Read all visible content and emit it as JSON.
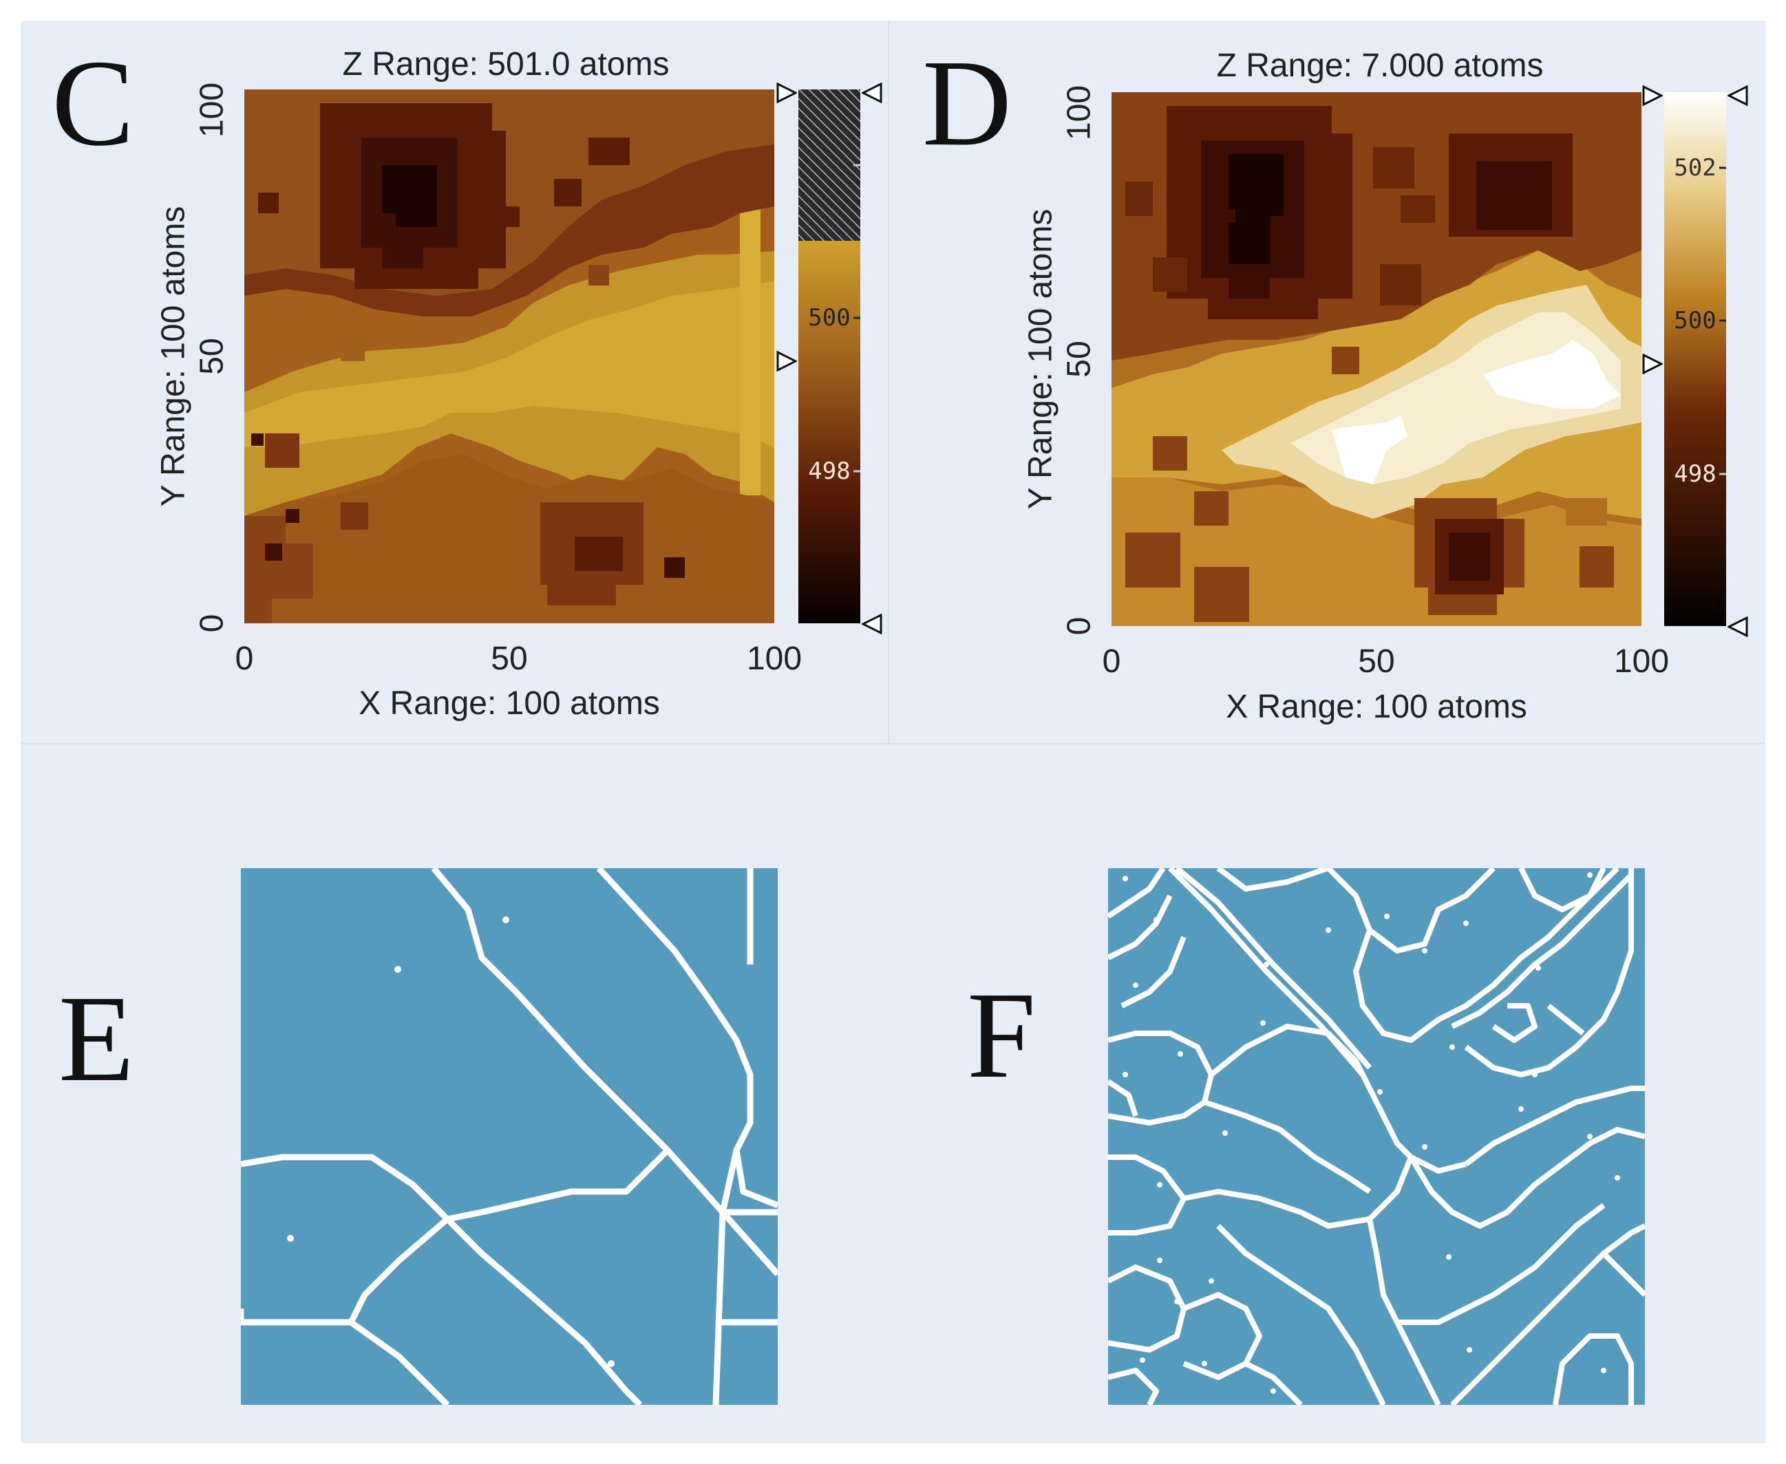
{
  "panels": {
    "C": {
      "letter": "C",
      "z_title": "Z Range:  501.0 atoms",
      "x_label": "X Range: 100 atoms",
      "y_label": "Y Range: 100 atoms",
      "x_ticks": [
        "0",
        "50",
        "100"
      ],
      "y_ticks": [
        "0",
        "50",
        "100"
      ],
      "colorbar_ticks": [
        "",
        "500",
        "498"
      ]
    },
    "D": {
      "letter": "D",
      "z_title": "Z Range:  7.000 atoms",
      "x_label": "X Range: 100 atoms",
      "y_label": "Y Range: 100 atoms",
      "x_ticks": [
        "0",
        "50",
        "100"
      ],
      "y_ticks": [
        "0",
        "50",
        "100"
      ],
      "colorbar_ticks": [
        "502",
        "500",
        "498"
      ]
    },
    "E": {
      "letter": "E"
    },
    "F": {
      "letter": "F"
    }
  },
  "chart_data": [
    {
      "panel": "C",
      "type": "heatmap",
      "title": "Z Range:  501.0 atoms",
      "xlabel": "X Range: 100 atoms",
      "ylabel": "Y Range: 100 atoms",
      "xlim": [
        0,
        100
      ],
      "ylim": [
        0,
        100
      ],
      "colorbar_ticks": [
        500,
        498
      ],
      "colors": {
        "darkest": "#2a0600",
        "dark": "#7a3410",
        "mid": "#a05f1c",
        "light": "#b98222",
        "lightest": "#c99a2a"
      },
      "z_regions": [
        {
          "level": 497,
          "x": [
            25,
            35
          ],
          "y": [
            80,
            87
          ]
        },
        {
          "level": 498,
          "x": [
            17,
            45
          ],
          "y": [
            62,
            100
          ]
        },
        {
          "level": 498,
          "x": [
            57,
            77
          ],
          "y": [
            5,
            22
          ]
        },
        {
          "level": 499,
          "x": [
            0,
            100
          ],
          "y": [
            60,
            100
          ]
        },
        {
          "level": 499,
          "x": [
            0,
            100
          ],
          "y": [
            0,
            27
          ]
        },
        {
          "level": 500,
          "x": [
            0,
            100
          ],
          "y": [
            27,
            60
          ]
        },
        {
          "level": 501,
          "x": [
            0,
            97
          ],
          "y": [
            33,
            50
          ]
        }
      ]
    },
    {
      "panel": "D",
      "type": "heatmap",
      "title": "Z Range:  7.000 atoms",
      "xlabel": "X Range: 100 atoms",
      "ylabel": "Y Range: 100 atoms",
      "xlim": [
        0,
        100
      ],
      "ylim": [
        0,
        100
      ],
      "colorbar_ticks": [
        502,
        500,
        498
      ],
      "colors": {
        "darkest": "#1a0400",
        "dark": "#5a1a06",
        "mid": "#8a4214",
        "midlight": "#b26e20",
        "light": "#d2a236",
        "pale": "#ecd9a2",
        "white": "#ffffff"
      },
      "z_regions": [
        {
          "level": 497,
          "x": [
            24,
            35
          ],
          "y": [
            62,
            87
          ]
        },
        {
          "level": 498,
          "x": [
            17,
            43
          ],
          "y": [
            58,
            100
          ]
        },
        {
          "level": 498,
          "x": [
            60,
            80
          ],
          "y": [
            5,
            22
          ]
        },
        {
          "level": 499,
          "x": [
            0,
            100
          ],
          "y": [
            60,
            100
          ]
        },
        {
          "level": 499,
          "x": [
            0,
            100
          ],
          "y": [
            0,
            25
          ]
        },
        {
          "level": 500,
          "x": [
            0,
            100
          ],
          "y": [
            25,
            60
          ]
        },
        {
          "level": 501,
          "x": [
            18,
            97
          ],
          "y": [
            25,
            55
          ]
        },
        {
          "level": 502,
          "x": [
            30,
            92
          ],
          "y": [
            30,
            50
          ]
        },
        {
          "level": 503,
          "x": [
            70,
            90
          ],
          "y": [
            36,
            48
          ]
        }
      ]
    }
  ]
}
